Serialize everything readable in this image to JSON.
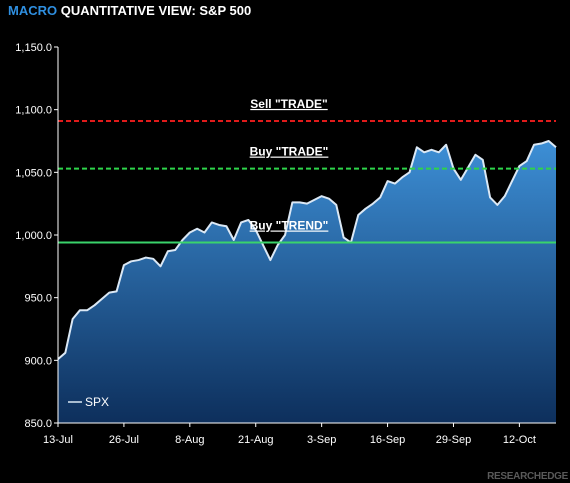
{
  "header": {
    "title_accent": "MACRO",
    "title_rest": " QUANTITATIVE VIEW: S&P 500"
  },
  "brand": "RESEARCHEDGE",
  "colors": {
    "background": "#000000",
    "area_top": "#3d8fd6",
    "area_bottom": "#0d2f5c",
    "line": "#dbe8f5",
    "sell_trade": "#e01b1b",
    "buy_trade": "#2ed44a",
    "buy_trend": "#3ad36b"
  },
  "chart_data": {
    "type": "area",
    "title": "MACRO QUANTITATIVE VIEW: S&P 500",
    "ylim": [
      850,
      1150
    ],
    "y_ticks": [
      "850.0",
      "900.0",
      "950.0",
      "1,000.0",
      "1,050.0",
      "1,100.0",
      "1,150.0"
    ],
    "y_tick_values": [
      850,
      900,
      950,
      1000,
      1050,
      1100,
      1150
    ],
    "x_ticks": [
      "13-Jul",
      "26-Jul",
      "8-Aug",
      "21-Aug",
      "3-Sep",
      "16-Sep",
      "29-Sep",
      "12-Oct"
    ],
    "x_tick_index": [
      0,
      9,
      18,
      27,
      36,
      45,
      54,
      63
    ],
    "legend": {
      "label": "SPX",
      "position": "bottom-left"
    },
    "reference_lines": [
      {
        "label": "Sell \"TRADE\"",
        "value": 1091,
        "style": "dashed",
        "color_key": "sell_trade"
      },
      {
        "label": "Buy \"TRADE\"",
        "value": 1053,
        "style": "dashed",
        "color_key": "buy_trade"
      },
      {
        "label": "Buy \"TREND\"",
        "value": 994,
        "style": "solid",
        "color_key": "buy_trend"
      }
    ],
    "series": [
      {
        "name": "SPX",
        "values": [
          901,
          906,
          933,
          940,
          940,
          944,
          949,
          954,
          955,
          976,
          979,
          980,
          982,
          981,
          975,
          987,
          988,
          996,
          1002,
          1005,
          1002,
          1010,
          1008,
          1007,
          996,
          1010,
          1012,
          1004,
          992,
          980,
          992,
          1000,
          1026,
          1026,
          1025,
          1028,
          1031,
          1029,
          1024,
          998,
          994,
          1016,
          1021,
          1025,
          1030,
          1043,
          1041,
          1046,
          1050,
          1070,
          1066,
          1068,
          1066,
          1072,
          1053,
          1044,
          1054,
          1064,
          1060,
          1030,
          1024,
          1031,
          1043,
          1055,
          1059,
          1072,
          1073,
          1075,
          1070
        ]
      }
    ]
  }
}
